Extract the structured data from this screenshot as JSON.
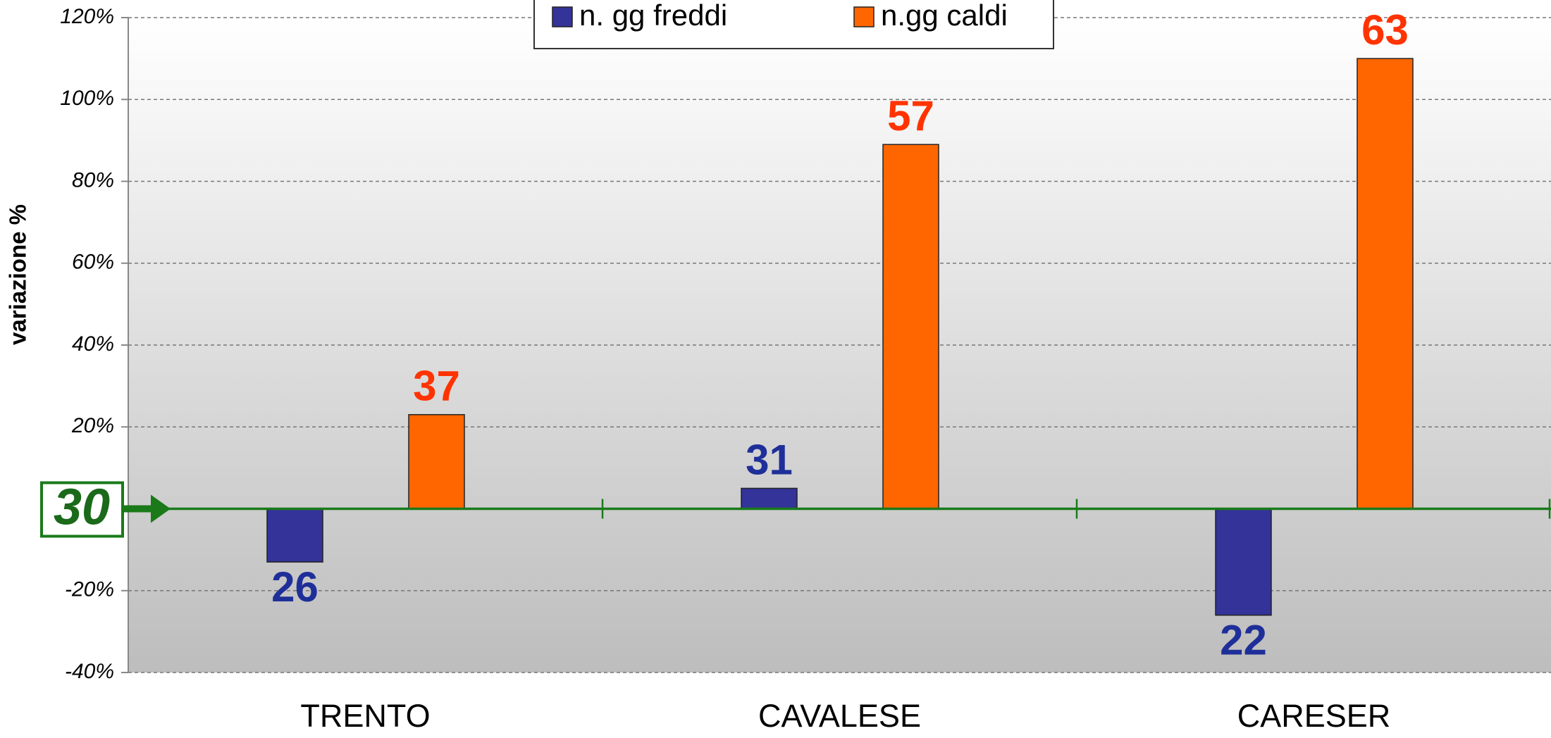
{
  "chart_data": {
    "type": "bar",
    "categories": [
      "TRENTO",
      "CAVALESE",
      "CARESER"
    ],
    "series": [
      {
        "name": "n. gg freddi",
        "color": "#333399",
        "label_color": "#1f2f99",
        "values": [
          -13,
          5,
          -26
        ],
        "counts": [
          26,
          31,
          22
        ]
      },
      {
        "name": "n.gg caldi",
        "color": "#ff6600",
        "label_color": "#ff3300",
        "values": [
          23,
          89,
          110
        ],
        "counts": [
          37,
          57,
          63
        ]
      }
    ],
    "y_axis_label": "variazione %",
    "reference": 30,
    "ylim": [
      -40,
      120
    ],
    "yticks": [
      {
        "value": -40,
        "label": "-40%"
      },
      {
        "value": -20,
        "label": "-20%"
      },
      {
        "value": 20,
        "label": "20%"
      },
      {
        "value": 40,
        "label": "40%"
      },
      {
        "value": 60,
        "label": "60%"
      },
      {
        "value": 80,
        "label": "80%"
      },
      {
        "value": 100,
        "label": "100%"
      },
      {
        "value": 120,
        "label": "120%"
      }
    ],
    "grid": true,
    "legend": "top"
  }
}
